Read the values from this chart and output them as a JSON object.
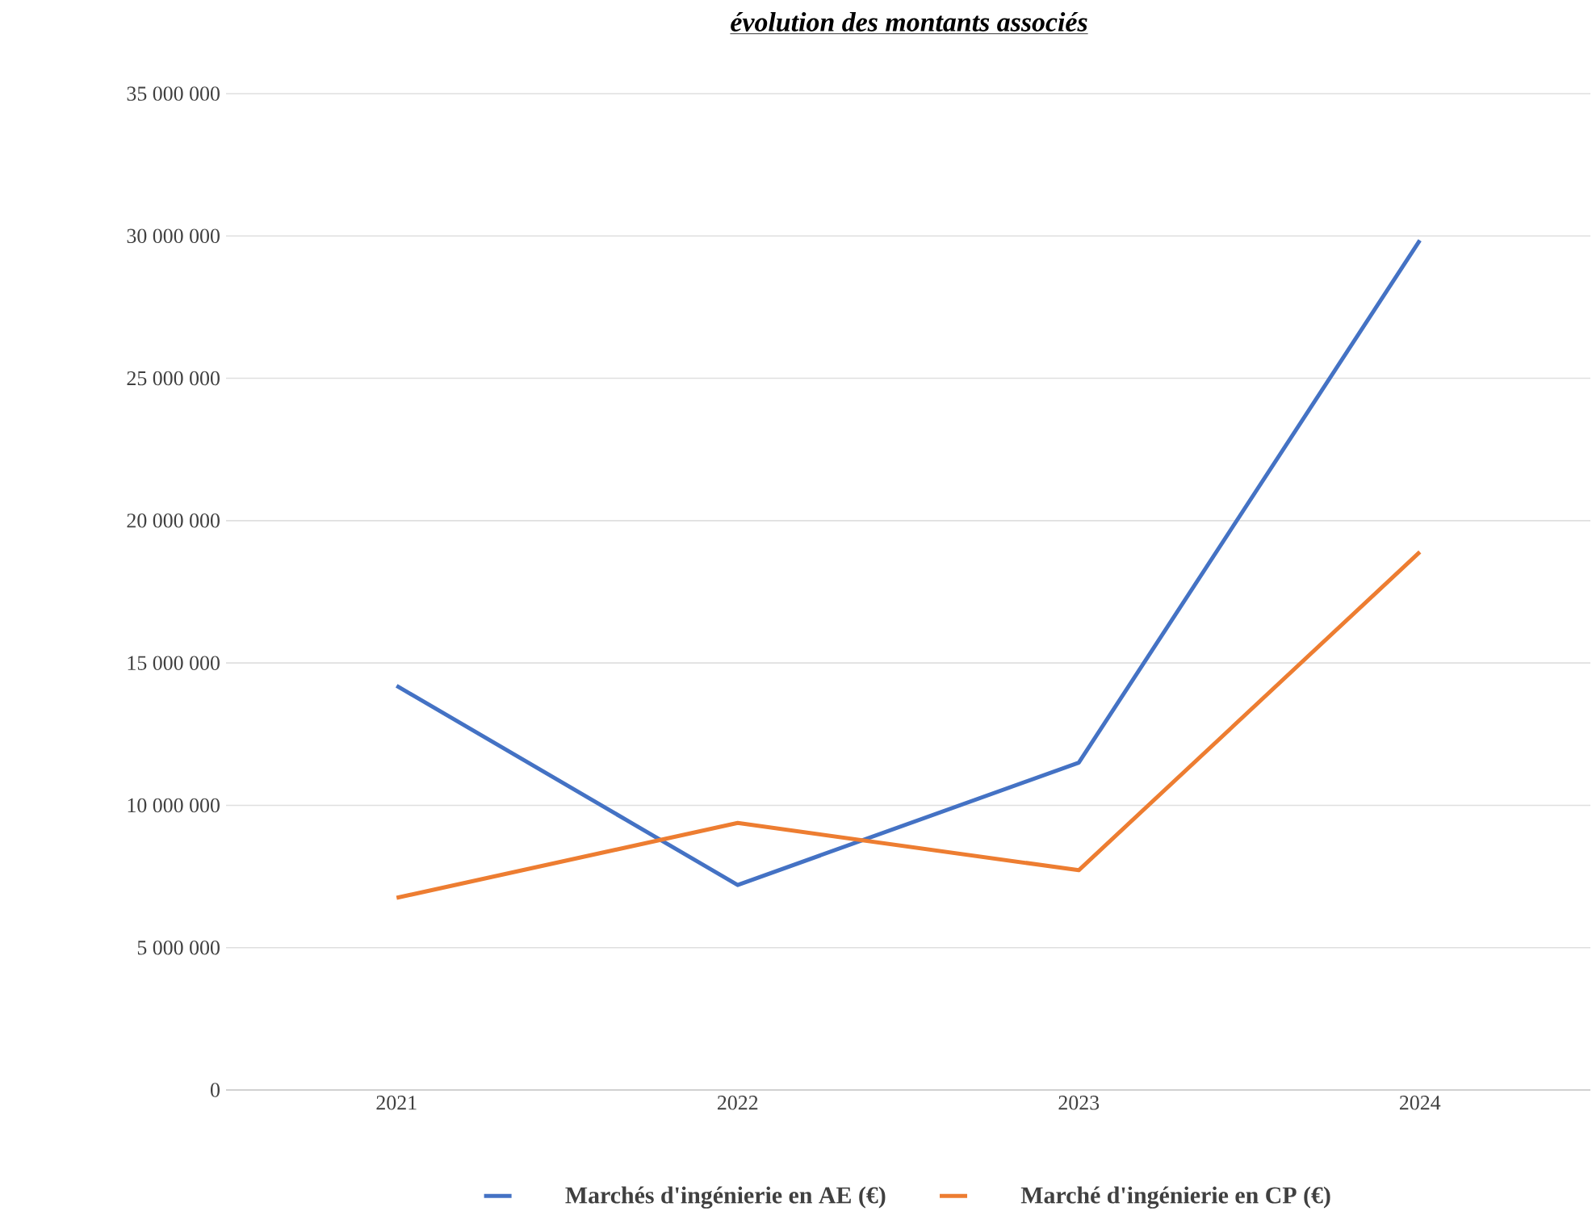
{
  "chart_data": {
    "type": "line",
    "title": "évolution des montants associés",
    "categories": [
      "2021",
      "2022",
      "2023",
      "2024"
    ],
    "series": [
      {
        "name": "Marchés d'ingénierie en AE (€)",
        "color": "#4472c4",
        "values": [
          14200000,
          7200000,
          11500000,
          29850000
        ]
      },
      {
        "name": "Marché d'ingénierie en CP (€)",
        "color": "#ed7d31",
        "values": [
          6750000,
          9380000,
          7720000,
          18900000
        ]
      }
    ],
    "ylim": [
      0,
      35000000
    ],
    "yticks": [
      0,
      {
        "value": 5000000,
        "label": "5 000 000"
      },
      {
        "value": 10000000,
        "label": "10 000 000"
      },
      {
        "value": 15000000,
        "label": "15 000 000"
      },
      {
        "value": 20000000,
        "label": "20 000 000"
      },
      {
        "value": 25000000,
        "label": "25 000 000"
      },
      {
        "value": 30000000,
        "label": "30 000 000"
      },
      {
        "value": 35000000,
        "label": "35 000 000"
      }
    ],
    "grid": "y",
    "legend": "bottom",
    "marker": "none",
    "line_style": "solid"
  }
}
